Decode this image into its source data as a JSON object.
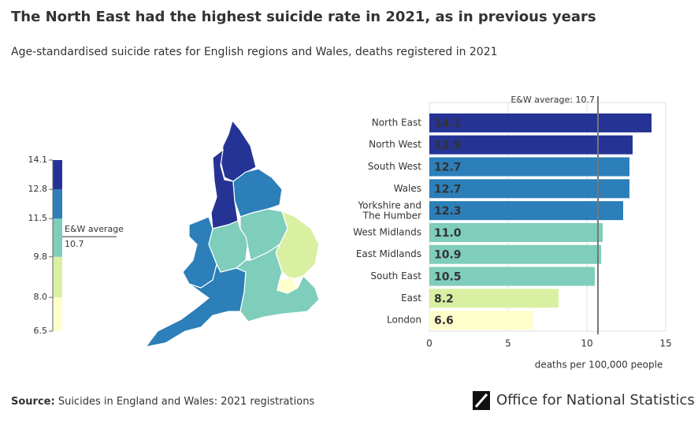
{
  "title": "The North East had the highest suicide rate in 2021, as in previous years",
  "subtitle": "Age-standardised suicide rates for English regions and Wales, deaths registered in 2021",
  "source_label": "Source:",
  "source_text": "Suicides in England and Wales: 2021 registrations",
  "logo_text": "Office for National Statistics",
  "color_scale": {
    "ticks": [
      {
        "value": 6.5,
        "label": "6.5"
      },
      {
        "value": 8,
        "label": "8.0"
      },
      9.8,
      11.5,
      12.8,
      14.1
    ],
    "colors": [
      "#ffffcc",
      "#d9f0a3",
      "#7fcdbb",
      "#2c7fb8",
      "#253494"
    ],
    "average": 10.7,
    "average_label": "E&W average",
    "average_value_label": "10.7"
  },
  "chart_data": {
    "type": "bar",
    "orientation": "horizontal",
    "categories": [
      "North East",
      "North West",
      "South West",
      "Wales",
      "Yorkshire and The Humber",
      "West Midlands",
      "East Midlands",
      "South East",
      "East",
      "London"
    ],
    "values": [
      14.1,
      12.9,
      12.7,
      12.7,
      12.3,
      11.0,
      10.9,
      10.5,
      8.2,
      6.6
    ],
    "value_labels": [
      "14.1",
      "12.9",
      "12.7",
      "12.7",
      "12.3",
      "11.0",
      "10.9",
      "10.5",
      "8.2",
      "6.6"
    ],
    "xlim": [
      0,
      15
    ],
    "xticks": [
      0,
      5,
      10,
      15
    ],
    "xlabel": "deaths per 100,000 people",
    "grid": true,
    "reference_line": {
      "value": 10.7,
      "label": "E&W average: 10.7"
    }
  }
}
